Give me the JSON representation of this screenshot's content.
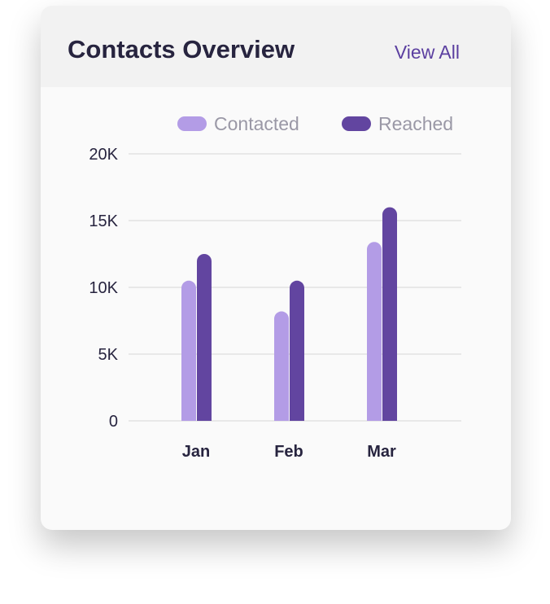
{
  "header": {
    "title": "Contacts Overview",
    "view_all": "View All"
  },
  "colors": {
    "contacted": "#b39ce6",
    "reached": "#6245a0",
    "grid": "#e8e8e8"
  },
  "chart_data": {
    "type": "bar",
    "categories": [
      "Jan",
      "Feb",
      "Mar"
    ],
    "series": [
      {
        "name": "Contacted",
        "values": [
          10500,
          8200,
          13400
        ]
      },
      {
        "name": "Reached",
        "values": [
          12500,
          10500,
          16000
        ]
      }
    ],
    "yticks": [
      "0",
      "5K",
      "10K",
      "15K",
      "20K"
    ],
    "ylim": [
      0,
      20000
    ],
    "grid": true,
    "legend": "top-right"
  }
}
